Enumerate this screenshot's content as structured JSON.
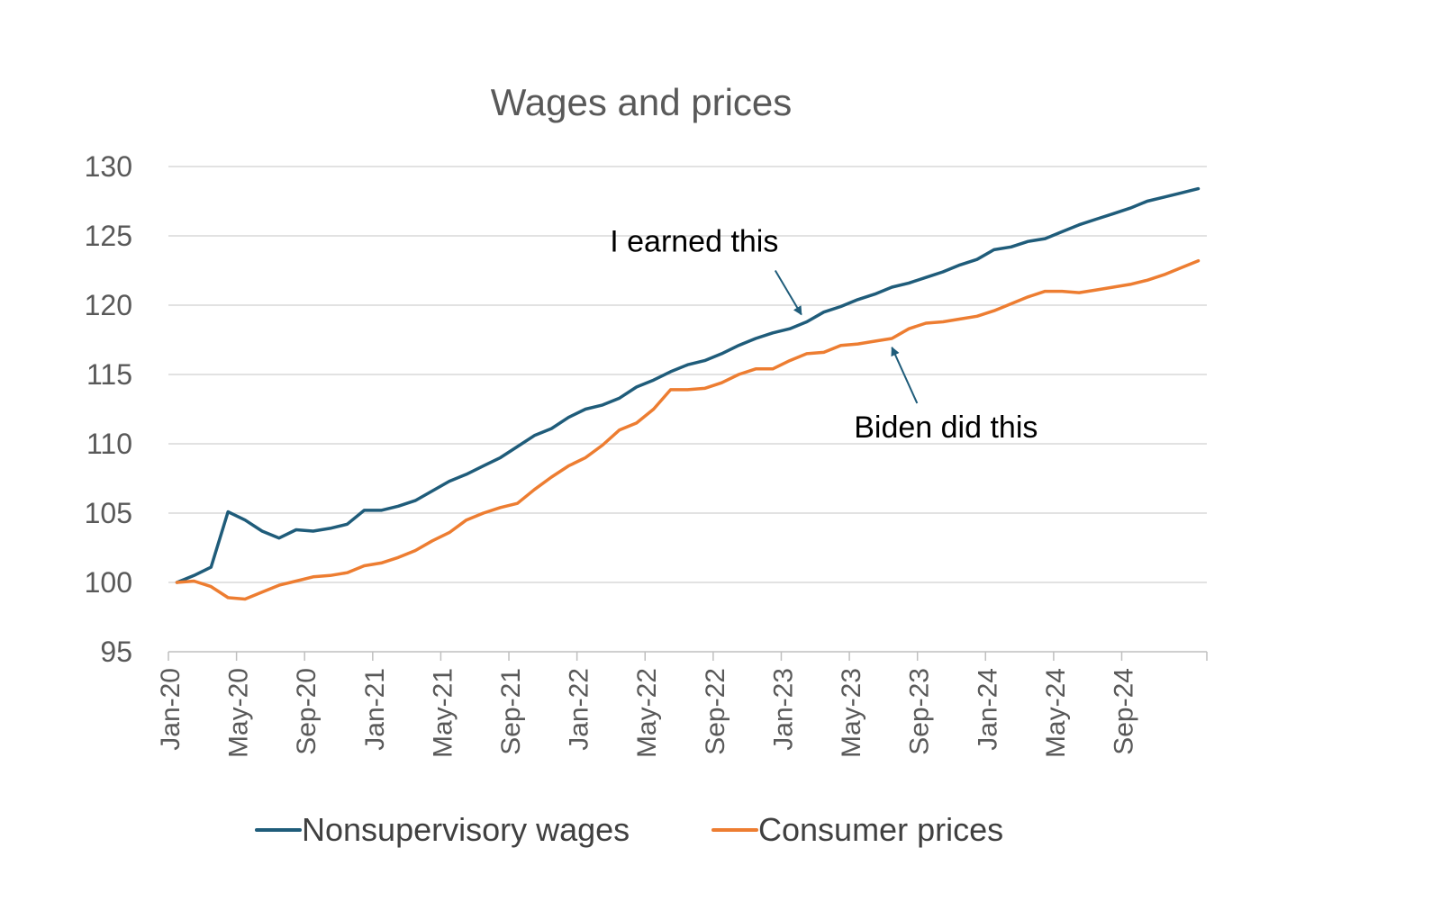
{
  "chart_data": {
    "type": "line",
    "title": "Wages and prices",
    "xlabel": "",
    "ylabel": "",
    "ylim": [
      95,
      130
    ],
    "yticks": [
      95,
      100,
      105,
      110,
      115,
      120,
      125,
      130
    ],
    "grid": true,
    "legend_position": "bottom",
    "x": [
      "Jan-20",
      "Feb-20",
      "Mar-20",
      "Apr-20",
      "May-20",
      "Jun-20",
      "Jul-20",
      "Aug-20",
      "Sep-20",
      "Oct-20",
      "Nov-20",
      "Dec-20",
      "Jan-21",
      "Feb-21",
      "Mar-21",
      "Apr-21",
      "May-21",
      "Jun-21",
      "Jul-21",
      "Aug-21",
      "Sep-21",
      "Oct-21",
      "Nov-21",
      "Dec-21",
      "Jan-22",
      "Feb-22",
      "Mar-22",
      "Apr-22",
      "May-22",
      "Jun-22",
      "Jul-22",
      "Aug-22",
      "Sep-22",
      "Oct-22",
      "Nov-22",
      "Dec-22",
      "Jan-23",
      "Feb-23",
      "Mar-23",
      "Apr-23",
      "May-23",
      "Jun-23",
      "Jul-23",
      "Aug-23",
      "Sep-23",
      "Oct-23",
      "Nov-23",
      "Dec-23",
      "Jan-24",
      "Feb-24",
      "Mar-24",
      "Apr-24",
      "May-24",
      "Jun-24",
      "Jul-24",
      "Aug-24",
      "Sep-24",
      "Oct-24",
      "Nov-24",
      "Dec-24",
      "Jan-25"
    ],
    "x_tick_labels": [
      "Jan-20",
      "May-20",
      "Sep-20",
      "Jan-21",
      "May-21",
      "Sep-21",
      "Jan-22",
      "May-22",
      "Sep-22",
      "Jan-23",
      "May-23",
      "Sep-23",
      "Jan-24",
      "May-24",
      "Sep-24"
    ],
    "series": [
      {
        "name": "Nonsupervisory wages",
        "color": "#1f5c7a",
        "values": [
          100.0,
          100.5,
          101.1,
          105.1,
          104.5,
          103.7,
          103.2,
          103.8,
          103.7,
          103.9,
          104.2,
          105.2,
          105.2,
          105.5,
          105.9,
          106.6,
          107.3,
          107.8,
          108.4,
          109.0,
          109.8,
          110.6,
          111.1,
          111.9,
          112.5,
          112.8,
          113.3,
          114.1,
          114.6,
          115.2,
          115.7,
          116.0,
          116.5,
          117.1,
          117.6,
          118.0,
          118.3,
          118.8,
          119.5,
          119.9,
          120.4,
          120.8,
          121.3,
          121.6,
          122.0,
          122.4,
          122.9,
          123.3,
          124.0,
          124.2,
          124.6,
          124.8,
          125.3,
          125.8,
          126.2,
          126.6,
          127.0,
          127.5,
          127.8,
          128.1,
          128.4
        ]
      },
      {
        "name": "Consumer prices",
        "color": "#ed7d31",
        "values": [
          100.0,
          100.1,
          99.7,
          98.9,
          98.8,
          99.3,
          99.8,
          100.1,
          100.4,
          100.5,
          100.7,
          101.2,
          101.4,
          101.8,
          102.3,
          103.0,
          103.6,
          104.5,
          105.0,
          105.4,
          105.7,
          106.7,
          107.6,
          108.4,
          109.0,
          109.9,
          111.0,
          111.5,
          112.5,
          113.9,
          113.9,
          114.0,
          114.4,
          115.0,
          115.4,
          115.4,
          116.0,
          116.5,
          116.6,
          117.1,
          117.2,
          117.4,
          117.6,
          118.3,
          118.7,
          118.8,
          119.0,
          119.2,
          119.6,
          120.1,
          120.6,
          121.0,
          121.0,
          120.9,
          121.1,
          121.3,
          121.5,
          121.8,
          122.2,
          122.7,
          123.2
        ]
      }
    ],
    "annotations": [
      {
        "text": "I earned this",
        "target_series": 0,
        "target_x": "Feb-23"
      },
      {
        "text": "Biden did this",
        "target_series": 1,
        "target_x": "Jul-23"
      }
    ]
  }
}
